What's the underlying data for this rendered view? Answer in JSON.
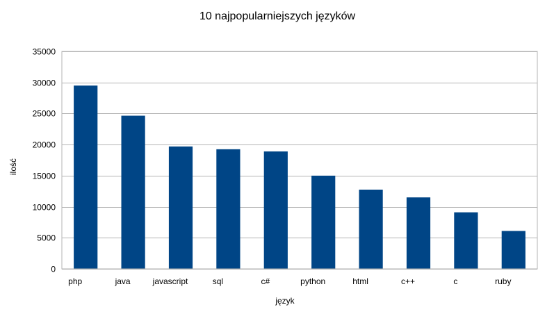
{
  "chart_data": {
    "type": "bar",
    "title": "10 najpopularniejszych języków",
    "xlabel": "język",
    "ylabel": "ilość",
    "categories": [
      "php",
      "java",
      "javascript",
      "sql",
      "c#",
      "python",
      "html",
      "c++",
      "c",
      "ruby"
    ],
    "values": [
      29500,
      24650,
      19700,
      19250,
      18900,
      15000,
      12750,
      11500,
      9100,
      6100
    ],
    "ylim": [
      0,
      35000
    ],
    "yticks": [
      0,
      5000,
      10000,
      15000,
      20000,
      25000,
      30000,
      35000
    ],
    "grid": true,
    "legend": "none",
    "colors": {
      "bar": "#004586",
      "grid": "#b3b3b3"
    }
  }
}
